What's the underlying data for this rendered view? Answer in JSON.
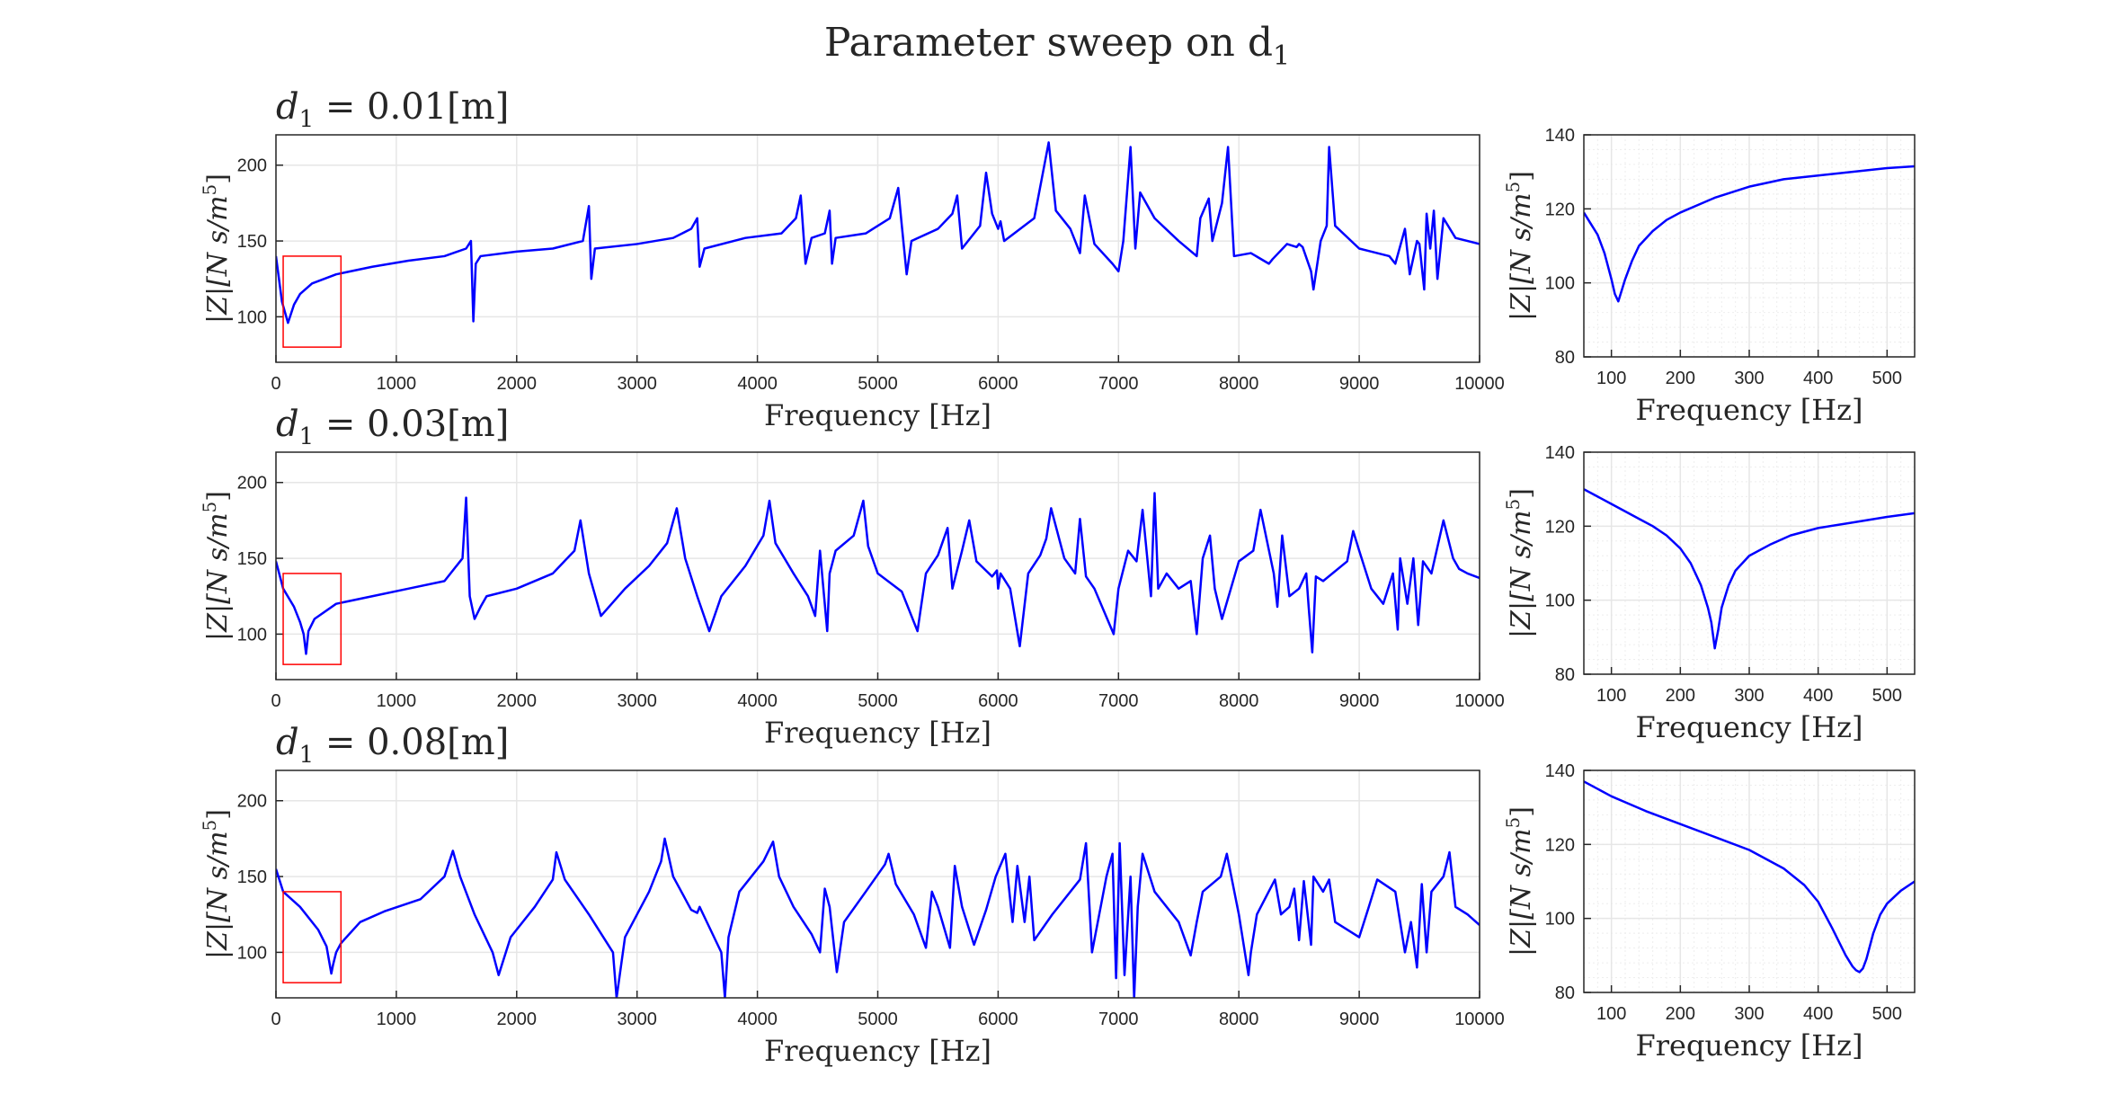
{
  "figure_title": "Parameter sweep on d",
  "figure_title_sub": "1",
  "colors": {
    "line": "#0000ff",
    "zoom_box": "#ff0000",
    "grid": "#e6e6e6",
    "axis": "#262626"
  },
  "chart_data": [
    {
      "id": "main-1",
      "type": "line",
      "title_var": "d",
      "title_sub": "1",
      "title_rest": " = 0.01[m]",
      "xlabel": "Frequency [Hz]",
      "ylabel": "|Z|[N s/m",
      "ylabel_sup": "5",
      "ylabel_end": "]",
      "xlim": [
        0,
        10000
      ],
      "ylim": [
        70,
        220
      ],
      "xticks": [
        "0",
        "1000",
        "2000",
        "3000",
        "4000",
        "5000",
        "6000",
        "7000",
        "8000",
        "9000",
        "10000"
      ],
      "yticks": [
        "100",
        "150",
        "200"
      ],
      "grid": true,
      "zoom_box": {
        "x": [
          60,
          540
        ],
        "y": [
          80,
          140
        ]
      },
      "series": [
        {
          "x": [
            0,
            50,
            100,
            150,
            200,
            300,
            500,
            800,
            1100,
            1400,
            1580,
            1620,
            1640,
            1660,
            1700,
            2000,
            2300,
            2550,
            2600,
            2620,
            2650,
            3000,
            3300,
            3450,
            3500,
            3520,
            3560,
            3900,
            4200,
            4320,
            4360,
            4400,
            4450,
            4560,
            4600,
            4620,
            4650,
            4900,
            5100,
            5170,
            5200,
            5240,
            5280,
            5500,
            5620,
            5660,
            5700,
            5850,
            5900,
            5950,
            5990,
            6000,
            6020,
            6050,
            6300,
            6420,
            6480,
            6600,
            6680,
            6720,
            6800,
            6950,
            7000,
            7040,
            7100,
            7140,
            7180,
            7300,
            7500,
            7650,
            7680,
            7750,
            7780,
            7860,
            7910,
            7960,
            8100,
            8250,
            8280,
            8400,
            8480,
            8500,
            8530,
            8600,
            8620,
            8680,
            8730,
            8750,
            8800,
            9000,
            9250,
            9300,
            9380,
            9420,
            9480,
            9500,
            9540,
            9560,
            9590,
            9620,
            9650,
            9700,
            9800,
            10000
          ],
          "y": [
            140,
            110,
            96,
            108,
            115,
            122,
            128,
            133,
            137,
            140,
            145,
            150,
            97,
            135,
            140,
            143,
            145,
            150,
            173,
            125,
            145,
            148,
            152,
            158,
            165,
            133,
            145,
            152,
            155,
            165,
            180,
            135,
            152,
            155,
            170,
            135,
            152,
            155,
            165,
            185,
            160,
            128,
            150,
            158,
            168,
            180,
            145,
            160,
            195,
            168,
            160,
            158,
            163,
            150,
            165,
            215,
            170,
            158,
            142,
            180,
            148,
            135,
            130,
            150,
            212,
            145,
            182,
            165,
            150,
            140,
            165,
            178,
            150,
            175,
            212,
            140,
            142,
            135,
            138,
            148,
            146,
            148,
            146,
            130,
            118,
            150,
            160,
            212,
            160,
            145,
            140,
            135,
            158,
            128,
            150,
            148,
            118,
            168,
            145,
            170,
            125,
            165,
            152,
            148
          ]
        }
      ]
    },
    {
      "id": "zoom-1",
      "type": "line",
      "xlabel": "Frequency [Hz]",
      "ylabel": "|Z|[N s/m",
      "ylabel_sup": "5",
      "ylabel_end": "]",
      "xlim": [
        60,
        540
      ],
      "ylim": [
        80,
        140
      ],
      "xticks": [
        "100",
        "200",
        "300",
        "400",
        "500"
      ],
      "yticks": [
        "80",
        "100",
        "120",
        "140"
      ],
      "grid": true,
      "series": [
        {
          "x": [
            60,
            70,
            80,
            90,
            100,
            105,
            110,
            115,
            120,
            130,
            140,
            160,
            180,
            200,
            250,
            300,
            350,
            400,
            450,
            500,
            540
          ],
          "y": [
            119,
            116,
            113,
            108,
            101,
            97,
            95,
            98,
            101,
            106,
            110,
            114,
            117,
            119,
            123,
            126,
            128,
            129,
            130,
            131,
            131.5
          ]
        }
      ]
    },
    {
      "id": "main-2",
      "type": "line",
      "title_var": "d",
      "title_sub": "1",
      "title_rest": " = 0.03[m]",
      "xlabel": "Frequency [Hz]",
      "ylabel": "|Z|[N s/m",
      "ylabel_sup": "5",
      "ylabel_end": "]",
      "xlim": [
        0,
        10000
      ],
      "ylim": [
        70,
        220
      ],
      "xticks": [
        "0",
        "1000",
        "2000",
        "3000",
        "4000",
        "5000",
        "6000",
        "7000",
        "8000",
        "9000",
        "10000"
      ],
      "yticks": [
        "100",
        "150",
        "200"
      ],
      "grid": true,
      "zoom_box": {
        "x": [
          60,
          540
        ],
        "y": [
          80,
          140
        ]
      },
      "series": [
        {
          "x": [
            0,
            60,
            150,
            200,
            230,
            250,
            270,
            320,
            500,
            800,
            1100,
            1400,
            1550,
            1580,
            1610,
            1650,
            1700,
            1750,
            2000,
            2300,
            2480,
            2530,
            2600,
            2700,
            2900,
            3100,
            3250,
            3330,
            3400,
            3500,
            3600,
            3700,
            3900,
            4050,
            4100,
            4150,
            4300,
            4420,
            4480,
            4520,
            4580,
            4600,
            4650,
            4800,
            4880,
            4920,
            5000,
            5200,
            5330,
            5400,
            5500,
            5580,
            5620,
            5700,
            5760,
            5820,
            5950,
            5990,
            6000,
            6020,
            6100,
            6180,
            6250,
            6350,
            6400,
            6440,
            6550,
            6640,
            6680,
            6730,
            6800,
            6960,
            7000,
            7080,
            7150,
            7200,
            7270,
            7300,
            7330,
            7400,
            7500,
            7600,
            7650,
            7700,
            7760,
            7800,
            7860,
            8000,
            8120,
            8180,
            8290,
            8320,
            8360,
            8420,
            8500,
            8560,
            8580,
            8610,
            8640,
            8700,
            8900,
            8950,
            9000,
            9100,
            9200,
            9280,
            9320,
            9340,
            9400,
            9450,
            9490,
            9530,
            9600,
            9700,
            9780,
            9830,
            9900,
            10000
          ],
          "y": [
            148,
            130,
            118,
            108,
            100,
            87,
            102,
            110,
            120,
            125,
            130,
            135,
            150,
            190,
            125,
            110,
            118,
            125,
            130,
            140,
            155,
            175,
            140,
            112,
            130,
            145,
            160,
            183,
            150,
            125,
            102,
            125,
            145,
            165,
            188,
            160,
            140,
            125,
            112,
            155,
            102,
            140,
            155,
            165,
            188,
            158,
            140,
            128,
            102,
            140,
            152,
            170,
            130,
            155,
            175,
            148,
            138,
            142,
            130,
            140,
            130,
            92,
            140,
            152,
            163,
            183,
            150,
            140,
            176,
            138,
            130,
            100,
            130,
            155,
            148,
            182,
            125,
            193,
            130,
            140,
            130,
            135,
            100,
            150,
            165,
            130,
            110,
            148,
            155,
            182,
            140,
            118,
            165,
            125,
            130,
            140,
            118,
            88,
            138,
            135,
            148,
            168,
            155,
            130,
            120,
            140,
            103,
            150,
            120,
            150,
            106,
            148,
            140,
            175,
            150,
            143,
            140,
            137
          ]
        }
      ]
    },
    {
      "id": "zoom-2",
      "type": "line",
      "xlabel": "Frequency [Hz]",
      "ylabel": "|Z|[N s/m",
      "ylabel_sup": "5",
      "ylabel_end": "]",
      "xlim": [
        60,
        540
      ],
      "ylim": [
        80,
        140
      ],
      "xticks": [
        "100",
        "200",
        "300",
        "400",
        "500"
      ],
      "yticks": [
        "80",
        "100",
        "120",
        "140"
      ],
      "grid": true,
      "series": [
        {
          "x": [
            60,
            80,
            100,
            120,
            140,
            160,
            180,
            200,
            215,
            230,
            240,
            245,
            250,
            255,
            260,
            270,
            280,
            300,
            330,
            360,
            400,
            450,
            500,
            540
          ],
          "y": [
            130,
            128,
            126,
            124,
            122,
            120,
            117.5,
            114,
            110,
            104,
            98,
            94,
            87,
            92,
            98,
            104,
            108,
            112,
            115,
            117.5,
            119.5,
            121,
            122.5,
            123.5
          ]
        }
      ]
    },
    {
      "id": "main-3",
      "type": "line",
      "title_var": "d",
      "title_sub": "1",
      "title_rest": " = 0.08[m]",
      "xlabel": "Frequency [Hz]",
      "ylabel": "|Z|[N s/m",
      "ylabel_sup": "5",
      "ylabel_end": "]",
      "xlim": [
        0,
        10000
      ],
      "ylim": [
        70,
        220
      ],
      "xticks": [
        "0",
        "1000",
        "2000",
        "3000",
        "4000",
        "5000",
        "6000",
        "7000",
        "8000",
        "9000",
        "10000"
      ],
      "yticks": [
        "100",
        "150",
        "200"
      ],
      "grid": true,
      "zoom_box": {
        "x": [
          60,
          540
        ],
        "y": [
          80,
          140
        ]
      },
      "series": [
        {
          "x": [
            0,
            60,
            200,
            350,
            420,
            460,
            475,
            500,
            540,
            700,
            900,
            1200,
            1400,
            1470,
            1530,
            1650,
            1800,
            1850,
            1950,
            2150,
            2300,
            2330,
            2400,
            2600,
            2800,
            2830,
            2900,
            3100,
            3200,
            3230,
            3300,
            3450,
            3500,
            3520,
            3550,
            3700,
            3730,
            3760,
            3850,
            4050,
            4130,
            4180,
            4300,
            4450,
            4520,
            4560,
            4600,
            4660,
            4720,
            4900,
            5060,
            5090,
            5150,
            5300,
            5400,
            5450,
            5500,
            5600,
            5640,
            5700,
            5800,
            5900,
            5980,
            6060,
            6120,
            6160,
            6220,
            6260,
            6300,
            6450,
            6680,
            6730,
            6780,
            6900,
            6950,
            6980,
            7010,
            7050,
            7100,
            7130,
            7160,
            7200,
            7300,
            7500,
            7600,
            7650,
            7700,
            7850,
            7900,
            8000,
            8080,
            8100,
            8150,
            8300,
            8350,
            8420,
            8460,
            8500,
            8540,
            8600,
            8620,
            8700,
            8750,
            8800,
            9000,
            9080,
            9150,
            9300,
            9380,
            9430,
            9480,
            9520,
            9560,
            9600,
            9700,
            9750,
            9800,
            9900,
            10000
          ],
          "y": [
            155,
            140,
            130,
            115,
            104,
            86,
            92,
            100,
            106,
            120,
            127,
            135,
            150,
            167,
            150,
            125,
            100,
            85,
            110,
            130,
            148,
            166,
            148,
            125,
            100,
            70,
            110,
            140,
            160,
            175,
            150,
            128,
            126,
            130,
            125,
            100,
            70,
            110,
            140,
            160,
            173,
            150,
            130,
            112,
            100,
            142,
            130,
            87,
            120,
            140,
            158,
            165,
            145,
            125,
            103,
            140,
            130,
            103,
            157,
            130,
            105,
            128,
            150,
            165,
            120,
            157,
            120,
            150,
            108,
            125,
            148,
            172,
            100,
            150,
            165,
            83,
            172,
            85,
            150,
            70,
            130,
            165,
            140,
            120,
            98,
            120,
            140,
            150,
            165,
            125,
            85,
            100,
            125,
            148,
            125,
            130,
            142,
            108,
            147,
            105,
            150,
            140,
            148,
            120,
            110,
            130,
            148,
            140,
            100,
            120,
            90,
            145,
            100,
            140,
            150,
            166,
            130,
            125,
            118
          ]
        }
      ]
    },
    {
      "id": "zoom-3",
      "type": "line",
      "xlabel": "Frequency [Hz]",
      "ylabel": "|Z|[N s/m",
      "ylabel_sup": "5",
      "ylabel_end": "]",
      "xlim": [
        60,
        540
      ],
      "ylim": [
        80,
        140
      ],
      "xticks": [
        "100",
        "200",
        "300",
        "400",
        "500"
      ],
      "yticks": [
        "80",
        "100",
        "120",
        "140"
      ],
      "grid": true,
      "series": [
        {
          "x": [
            60,
            80,
            100,
            150,
            200,
            250,
            300,
            350,
            380,
            400,
            420,
            440,
            450,
            455,
            460,
            465,
            470,
            480,
            490,
            500,
            520,
            540
          ],
          "y": [
            137,
            135,
            133,
            129,
            125.5,
            122,
            118.5,
            113.5,
            109,
            104.5,
            97.5,
            90,
            87,
            86,
            85.5,
            86.5,
            89,
            96,
            101,
            104,
            107.5,
            110
          ]
        }
      ]
    }
  ]
}
